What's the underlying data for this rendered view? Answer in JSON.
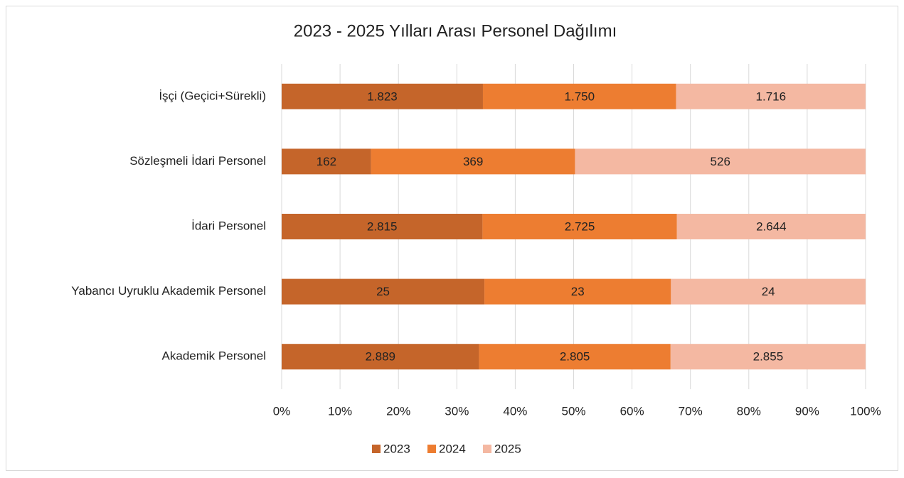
{
  "chart_data": {
    "type": "bar",
    "orientation": "horizontal",
    "stack": "percent",
    "title": "2023 - 2025 Yılları Arası Personel Dağılımı",
    "categories": [
      "İşçi (Geçici+Sürekli)",
      "Sözleşmeli İdari Personel",
      "İdari Personel",
      "Yabancı Uyruklu Akademik Personel",
      "Akademik Personel"
    ],
    "series": [
      {
        "name": "2023",
        "color": "#c5652a",
        "values": [
          1823,
          162,
          2815,
          25,
          2889
        ],
        "value_labels": [
          "1.823",
          "162",
          "2.815",
          "25",
          "2.889"
        ]
      },
      {
        "name": "2024",
        "color": "#ed7d31",
        "values": [
          1750,
          369,
          2725,
          23,
          2805
        ],
        "value_labels": [
          "1.750",
          "369",
          "2.725",
          "23",
          "2.805"
        ]
      },
      {
        "name": "2025",
        "color": "#f4b8a2",
        "values": [
          1716,
          526,
          2644,
          24,
          2855
        ],
        "value_labels": [
          "1.716",
          "526",
          "2.644",
          "24",
          "2.855"
        ]
      }
    ],
    "xlim": [
      0,
      100
    ],
    "xticks": [
      {
        "value": 0,
        "label": "0%"
      },
      {
        "value": 10,
        "label": "10%"
      },
      {
        "value": 20,
        "label": "20%"
      },
      {
        "value": 30,
        "label": "30%"
      },
      {
        "value": 40,
        "label": "40%"
      },
      {
        "value": 50,
        "label": "50%"
      },
      {
        "value": 60,
        "label": "60%"
      },
      {
        "value": 70,
        "label": "70%"
      },
      {
        "value": 80,
        "label": "80%"
      },
      {
        "value": 90,
        "label": "90%"
      },
      {
        "value": 100,
        "label": "100%"
      }
    ],
    "grid": true,
    "legend": "bottom"
  }
}
